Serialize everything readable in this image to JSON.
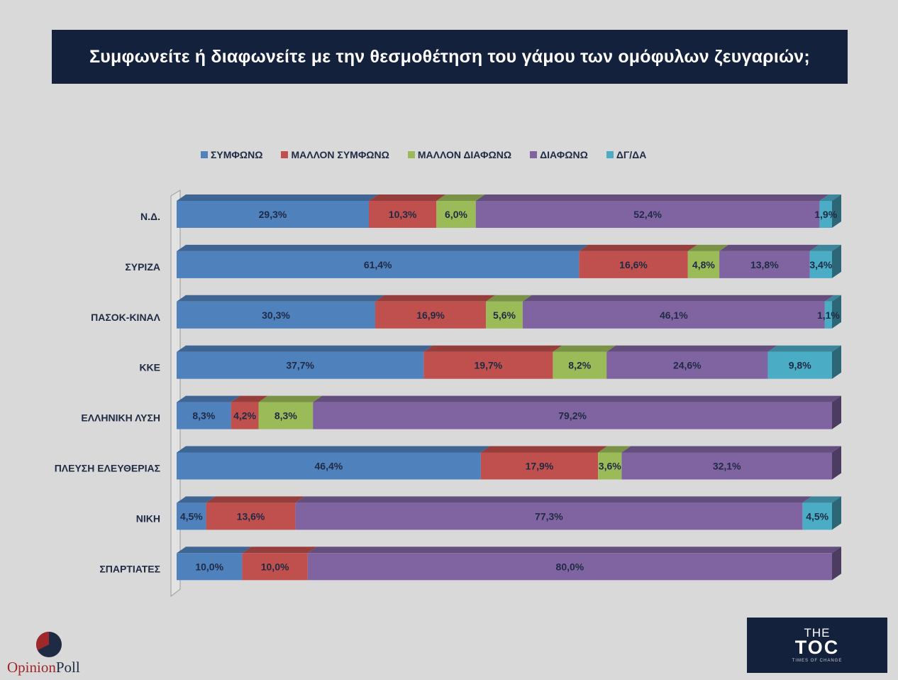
{
  "title": "Συμφωνείτε ή διαφωνείτε με την θεσμοθέτηση του γάμου των ομόφυλων ζευγαριών;",
  "logos": {
    "opinion": "Opinion",
    "poll": "Poll",
    "toc_the": "THE",
    "toc_main": "TOC",
    "toc_tagline": "TIMES OF CHANGE"
  },
  "chart_data": {
    "type": "bar",
    "orientation": "horizontal",
    "stacked": true,
    "percent_stacked": true,
    "style": "3d",
    "legend_position": "top",
    "categories": [
      "Ν.Δ.",
      "ΣΥΡΙΖΑ",
      "ΠΑΣΟΚ-ΚΙΝΑΛ",
      "ΚΚΕ",
      "ΕΛΛΗΝΙΚΗ ΛΥΣΗ",
      "ΠΛΕΥΣΗ ΕΛΕΥΘΕΡΙΑΣ",
      "ΝΙΚΗ",
      "ΣΠΑΡΤΙΑΤΕΣ"
    ],
    "series": [
      {
        "name": "ΣΥΜΦΩΝΩ",
        "color": "#4f81bd",
        "values": [
          29.3,
          61.4,
          30.3,
          37.7,
          8.3,
          46.4,
          4.5,
          10.0
        ],
        "labels": [
          "29,3%",
          "61,4%",
          "30,3%",
          "37,7%",
          "8,3%",
          "46,4%",
          "4,5%",
          "10,0%"
        ]
      },
      {
        "name": "ΜΑΛΛΟΝ ΣΥΜΦΩΝΩ",
        "color": "#c0504d",
        "values": [
          10.3,
          16.6,
          16.9,
          19.7,
          4.2,
          17.9,
          13.6,
          10.0
        ],
        "labels": [
          "10,3%",
          "16,6%",
          "16,9%",
          "19,7%",
          "4,2%",
          "17,9%",
          "13,6%",
          "10,0%"
        ]
      },
      {
        "name": "ΜΑΛΛΟΝ ΔΙΑΦΩΝΩ",
        "color": "#9bbb59",
        "values": [
          6.0,
          4.8,
          5.6,
          8.2,
          8.3,
          3.6,
          0,
          0
        ],
        "labels": [
          "6,0%",
          "4,8%",
          "5,6%",
          "8,2%",
          "8,3%",
          "3,6%",
          "",
          ""
        ]
      },
      {
        "name": "ΔΙΑΦΩΝΩ",
        "color": "#8064a2",
        "values": [
          52.4,
          13.8,
          46.1,
          24.6,
          79.2,
          32.1,
          77.3,
          80.0
        ],
        "labels": [
          "52,4%",
          "13,8%",
          "46,1%",
          "24,6%",
          "79,2%",
          "32,1%",
          "77,3%",
          "80,0%"
        ]
      },
      {
        "name": "ΔΓ/ΔΑ",
        "color": "#4bacc6",
        "values": [
          1.9,
          3.4,
          1.1,
          9.8,
          0,
          0,
          4.5,
          0
        ],
        "labels": [
          "1,9%",
          "3,4%",
          "1,1%",
          "9,8%",
          "",
          "",
          "4,5%",
          ""
        ]
      }
    ]
  }
}
